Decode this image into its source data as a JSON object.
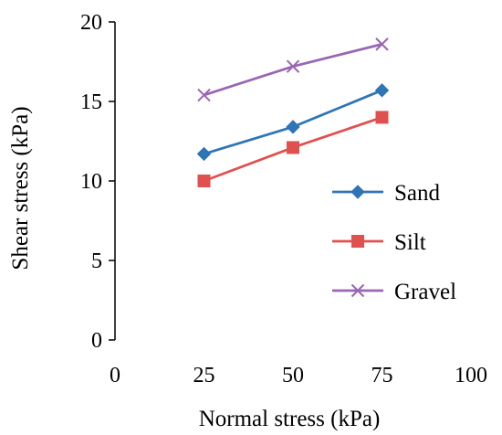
{
  "chart_data": {
    "type": "line",
    "title": "",
    "xlabel": "Normal stress (kPa)",
    "ylabel": "Shear stress (kPa)",
    "xlim": [
      0,
      100
    ],
    "ylim": [
      0,
      20
    ],
    "xticks": [
      0,
      25,
      50,
      75,
      100
    ],
    "yticks": [
      0,
      5,
      10,
      15,
      20
    ],
    "grid": false,
    "legend_position": "right",
    "x": [
      25,
      50,
      75
    ],
    "series": [
      {
        "name": "Sand",
        "values": [
          11.7,
          13.4,
          15.7
        ],
        "color": "#2E75B6",
        "marker": "diamond"
      },
      {
        "name": "Silt",
        "values": [
          10.0,
          12.1,
          14.0
        ],
        "color": "#E0504E",
        "marker": "square"
      },
      {
        "name": "Gravel",
        "values": [
          15.4,
          17.2,
          18.6
        ],
        "color": "#9966B3",
        "marker": "x"
      }
    ]
  }
}
